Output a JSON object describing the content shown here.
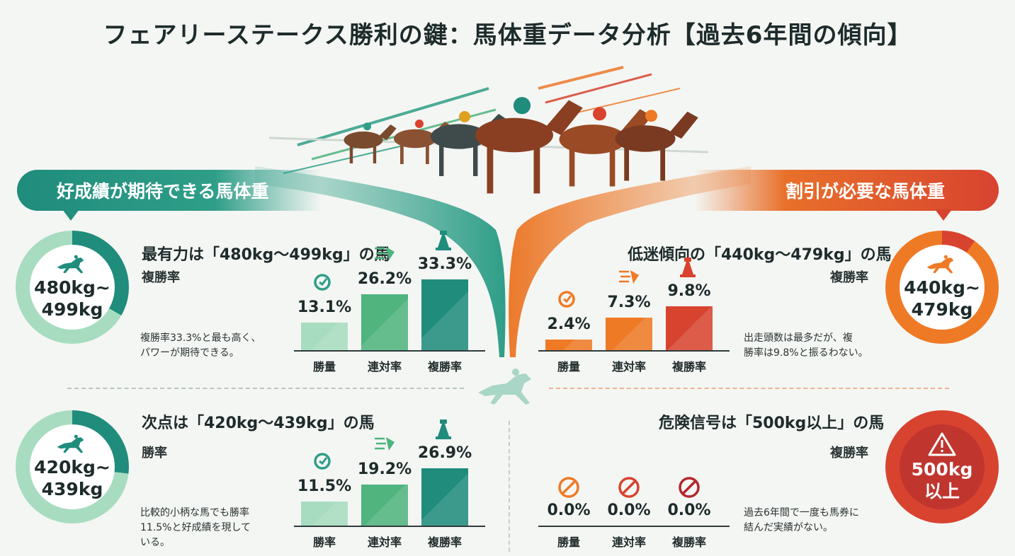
{
  "title": "フェアリーステークス勝利の鍵：馬体重データ分析【過去6年間の傾向】",
  "banners": {
    "left": "好成績が期待できる馬体重",
    "right": "割引が必要な馬体重"
  },
  "colors": {
    "green_dark": "#1f8c7c",
    "green_mid": "#4fb47e",
    "green_light": "#a7dcc0",
    "orange": "#ef7a26",
    "red": "#d8432f",
    "dark_red": "#b3262d",
    "track_green": "#2f9e88",
    "track_orange": "#ec7a2c"
  },
  "icons": {
    "rings": "horse-racing-icon",
    "win": "target-icon",
    "quinella": "speed-icon",
    "place": "trophy-icon",
    "zero": "prohibited-icon",
    "warning": "warning-icon"
  },
  "sections": [
    {
      "ring_label_1": "480kg~",
      "ring_label_2": "499kg",
      "heading": "最有力は「480kg～499kg」の馬",
      "subheading": "複勝率",
      "note_1": "複勝率33.3%と最も高く、",
      "note_2": "パワーが期待できる。"
    },
    {
      "ring_label_1": "420kg~",
      "ring_label_2": "439kg",
      "heading": "次点は「420kg～439kg」の馬",
      "subheading": "勝率",
      "note_1": "比較的小柄な馬でも勝率",
      "note_2": "11.5%と好成績を現して",
      "note_3": "いる。"
    },
    {
      "ring_label_1": "440kg~",
      "ring_label_2": "479kg",
      "heading": "低迷傾向の「440kg～479kg」の馬",
      "subheading": "複勝率",
      "note_1": "出走頭数は最多だが、複",
      "note_2": "勝率は9.8%と振るわない。"
    },
    {
      "ring_label_1": "500kg",
      "ring_label_2": "以上",
      "heading": "危険信号は「500kg以上」の馬",
      "subheading": "複勝率",
      "note_1": "過去6年間で一度も馬券に",
      "note_2": "結んだ実績がない。"
    }
  ],
  "chart_data": [
    {
      "type": "bar",
      "title": "最有力は「480kg～499kg」の馬",
      "categories": [
        "勝量",
        "連対率",
        "複勝率"
      ],
      "values": [
        13.1,
        26.2,
        33.3
      ],
      "value_labels": [
        "13.1%",
        "26.2%",
        "33.3%"
      ],
      "ylim": [
        0,
        35
      ]
    },
    {
      "type": "bar",
      "title": "次点は「420kg～439kg」の馬",
      "categories": [
        "勝率",
        "連対率",
        "複勝率"
      ],
      "values": [
        11.5,
        19.2,
        26.9
      ],
      "value_labels": [
        "11.5%",
        "19.2%",
        "26.9%"
      ],
      "ylim": [
        0,
        35
      ]
    },
    {
      "type": "bar",
      "title": "低迷傾向の「440kg～479kg」の馬",
      "categories": [
        "勝量",
        "連対率",
        "複勝率"
      ],
      "values": [
        2.4,
        7.3,
        9.8
      ],
      "value_labels": [
        "2.4%",
        "7.3%",
        "9.8%"
      ],
      "ylim": [
        0,
        35
      ]
    },
    {
      "type": "bar",
      "title": "危険信号は「500kg以上」の馬",
      "categories": [
        "勝量",
        "連対率",
        "複勝率"
      ],
      "values": [
        0.0,
        0.0,
        0.0
      ],
      "value_labels": [
        "0.0%",
        "0.0%",
        "0.0%"
      ],
      "ylim": [
        0,
        35
      ]
    }
  ],
  "ring_levels": [
    0.333,
    0.269,
    0.098,
    0.0
  ]
}
